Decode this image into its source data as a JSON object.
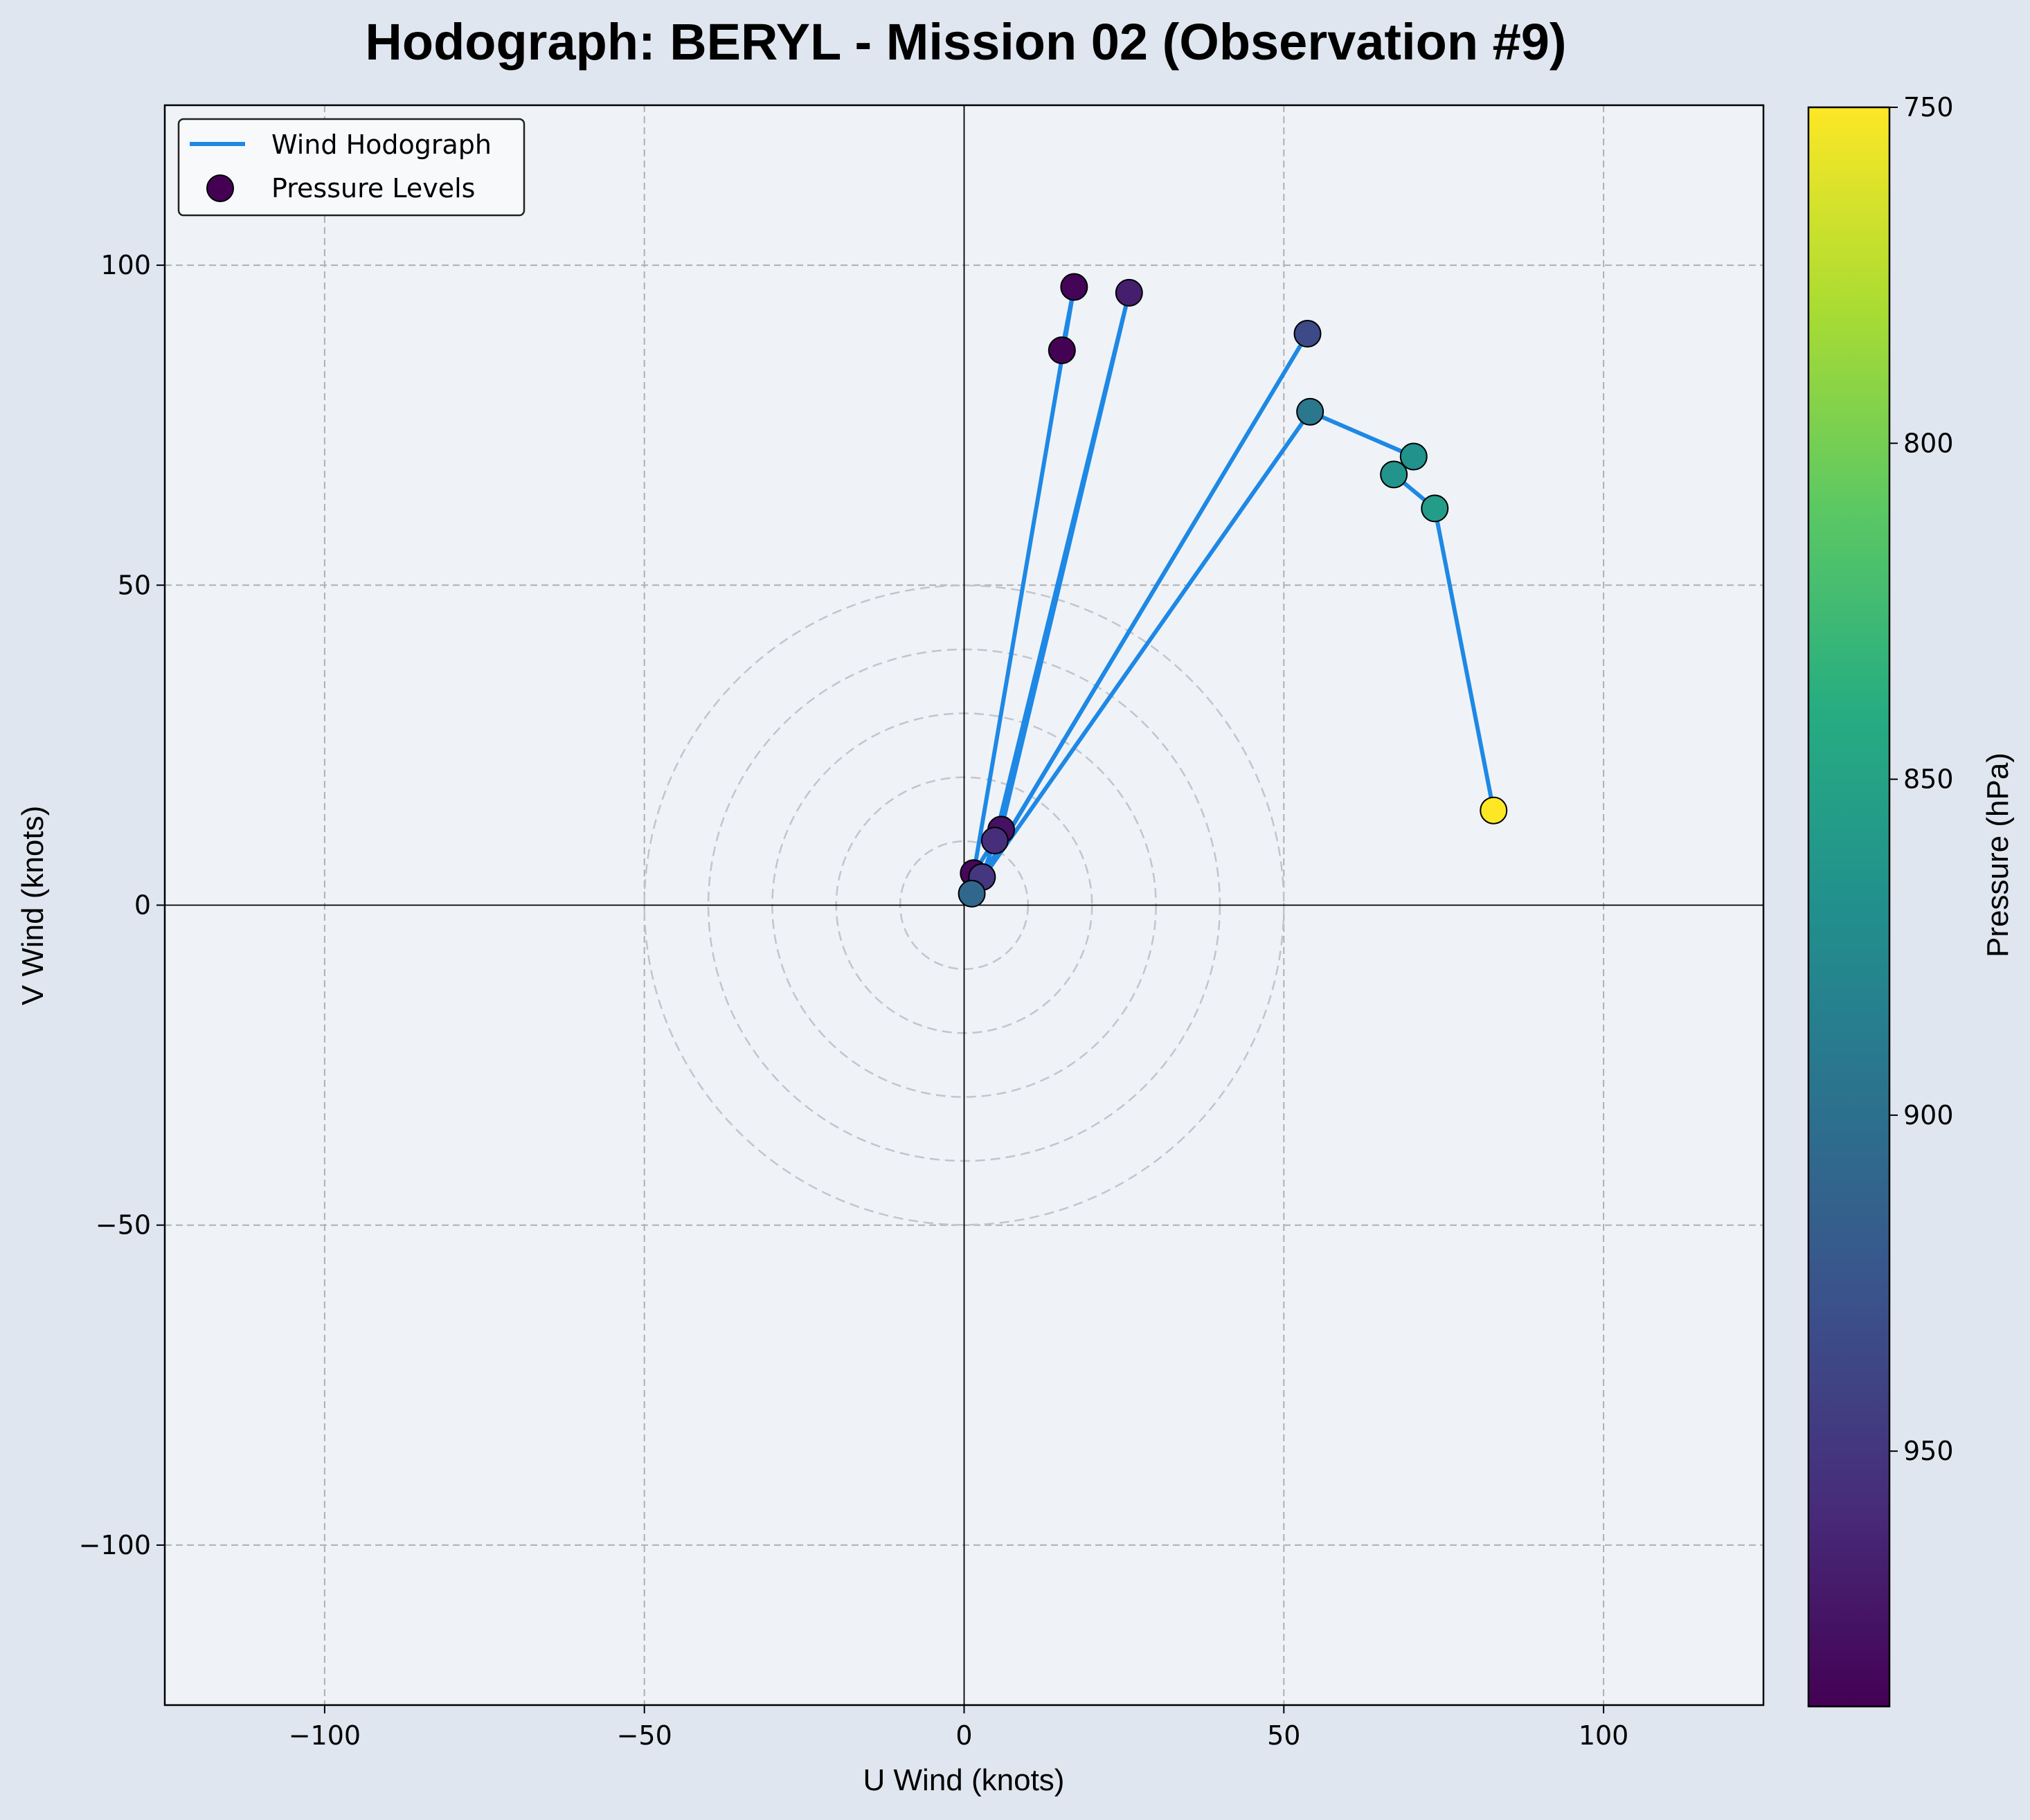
{
  "chart_data": {
    "type": "scatter",
    "title": "Hodograph: BERYL - Mission 02 (Observation #9)",
    "xlabel": "U Wind (knots)",
    "ylabel": "V Wind (knots)",
    "xlim": [
      -125,
      125
    ],
    "ylim": [
      -125,
      125
    ],
    "xticks": [
      -100,
      -50,
      0,
      50,
      100
    ],
    "yticks": [
      -100,
      -50,
      0,
      50,
      100
    ],
    "xtick_labels": [
      "−100",
      "−50",
      "0",
      "50",
      "100"
    ],
    "ytick_labels": [
      "−100",
      "−50",
      "0",
      "50",
      "100"
    ],
    "grid": true,
    "speed_rings": [
      10,
      20,
      30,
      40,
      50
    ],
    "legend_position": "top-left",
    "colors": {
      "line": "#1e88e5",
      "plot_background": "#eff3f8",
      "figure_background": "#dfe6ef",
      "grid": "#b0b0b0"
    },
    "series": [
      {
        "name": "Wind Hodograph",
        "kind": "line",
        "u": [
          15.3,
          17.2,
          1.5,
          5.8,
          25.8,
          4.8,
          2.8,
          53.7,
          1.2,
          54.1,
          70.3,
          67.2,
          73.6,
          82.8
        ],
        "v": [
          86.7,
          96.6,
          5.0,
          11.8,
          95.7,
          10.1,
          4.4,
          89.3,
          1.8,
          77.1,
          70.1,
          67.3,
          62.0,
          14.8
        ]
      },
      {
        "name": "Pressure Levels",
        "kind": "scatter",
        "u": [
          15.3,
          17.2,
          1.5,
          5.8,
          25.8,
          4.8,
          2.8,
          53.7,
          1.2,
          54.1,
          70.3,
          67.2,
          73.6,
          82.8
        ],
        "v": [
          86.7,
          96.6,
          5.0,
          11.8,
          95.7,
          10.1,
          4.4,
          89.3,
          1.8,
          77.1,
          70.1,
          67.3,
          62.0,
          14.8
        ],
        "pressure_hPa": [
          987,
          985,
          983,
          977,
          968,
          957,
          950,
          934,
          908,
          893,
          867,
          865,
          857,
          750
        ]
      }
    ],
    "colorbar": {
      "label": "Pressure (hPa)",
      "colormap": "viridis",
      "reversed": true,
      "range": [
        750,
        988
      ],
      "ticks": [
        750,
        800,
        850,
        900,
        950
      ],
      "tick_labels": [
        "750",
        "800",
        "850",
        "900",
        "950"
      ]
    }
  }
}
